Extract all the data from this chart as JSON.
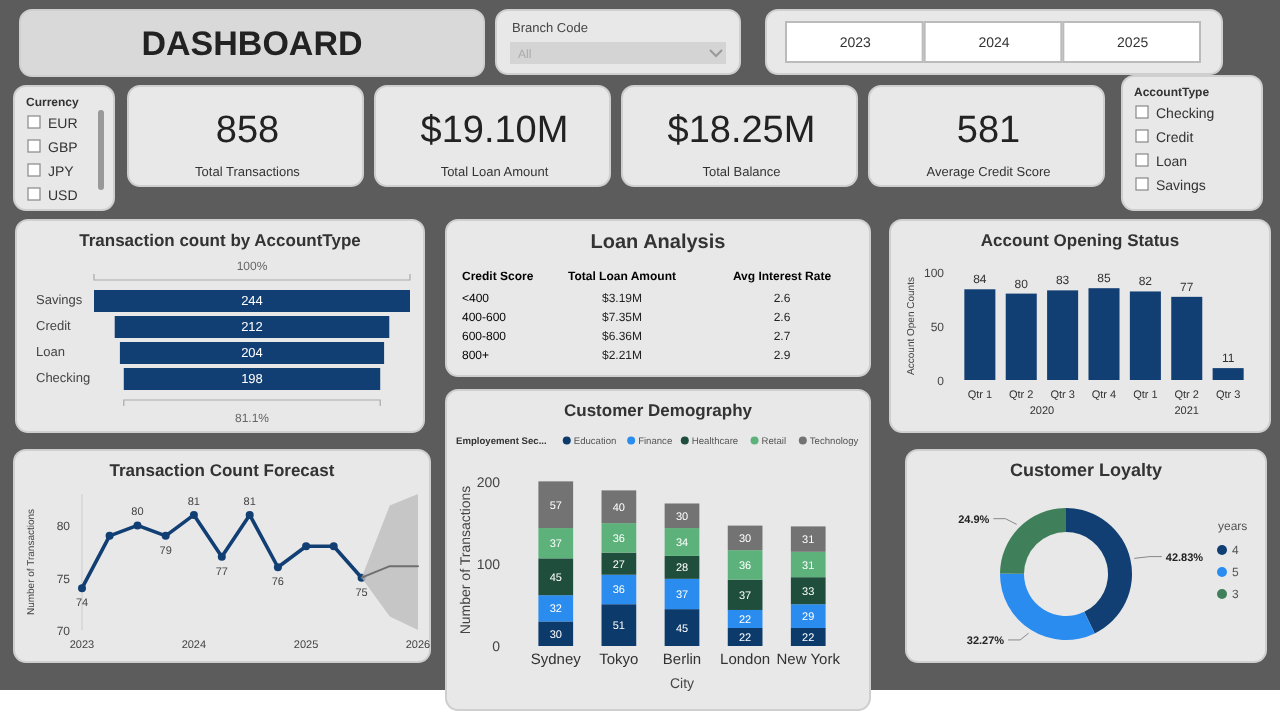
{
  "chart_data": [
    {
      "type": "other",
      "title": "DASHBOARD"
    },
    {
      "type": "other",
      "title": "Branch Code",
      "categories": [
        "All"
      ]
    },
    {
      "type": "other",
      "categories": [
        "2023",
        "2024",
        "2025"
      ]
    },
    {
      "type": "other",
      "title": "Currency",
      "categories": [
        "EUR",
        "GBP",
        "JPY",
        "USD"
      ]
    },
    {
      "type": "other",
      "categories": [
        "Total Transactions",
        "Total Loan Amount",
        "Total Balance",
        "Average Credit Score"
      ],
      "value_labels": [
        "858",
        "$19.10M",
        "$18.25M",
        "581"
      ]
    },
    {
      "type": "other",
      "title": "AccountType",
      "categories": [
        "Checking",
        "Credit",
        "Loan",
        "Savings"
      ]
    },
    {
      "type": "other",
      "title": "Transaction count by AccountType",
      "categories": [
        "Savings",
        "Credit",
        "Loan",
        "Checking"
      ],
      "values": [
        244,
        212,
        204,
        198
      ],
      "color": "#123f73",
      "data_labels": true,
      "annotations": [
        "100%",
        "81.1%"
      ]
    },
    {
      "type": "other",
      "title": "Loan Analysis",
      "xlabel": "Credit Score",
      "categories": [
        "<400",
        "400-600",
        "600-800",
        "800+"
      ],
      "series": [
        {
          "name": "Total Loan Amount",
          "values": [
            3.19,
            7.35,
            6.36,
            2.21
          ],
          "value_labels": [
            "$3.19M",
            "$7.35M",
            "$6.36M",
            "$2.21M"
          ]
        },
        {
          "name": "Avg Interest Rate",
          "values": [
            2.6,
            2.6,
            2.7,
            2.9
          ]
        }
      ],
      "data_labels": true
    },
    {
      "type": "bar",
      "title": "Customer Demography",
      "xlabel": "City",
      "ylabel": "Number of Transactions",
      "legend_title": "Employement Sec...",
      "legend": "top",
      "stacked": true,
      "data_labels": true,
      "categories": [
        "Sydney",
        "Tokyo",
        "Berlin",
        "London",
        "New York"
      ],
      "ylim": [
        0,
        210
      ],
      "yticks": [
        0,
        100,
        200
      ],
      "series": [
        {
          "name": "Education",
          "color": "#0b3a6b",
          "values": [
            30,
            51,
            45,
            22,
            22
          ]
        },
        {
          "name": "Finance",
          "color": "#2b8cf0",
          "values": [
            32,
            36,
            37,
            22,
            29
          ]
        },
        {
          "name": "Healthcare",
          "color": "#1f4e3d",
          "values": [
            45,
            27,
            28,
            37,
            33
          ]
        },
        {
          "name": "Retail",
          "color": "#5cb27a",
          "values": [
            37,
            36,
            34,
            36,
            31
          ]
        },
        {
          "name": "Technology",
          "color": "#737373",
          "values": [
            57,
            40,
            30,
            30,
            31
          ]
        }
      ]
    },
    {
      "type": "bar",
      "title": "Account Opening Status",
      "ylabel": "Account Open Counts",
      "categories": [
        "Qtr 1",
        "Qtr 2",
        "Qtr 3",
        "Qtr 4",
        "Qtr 1",
        "Qtr 2",
        "Qtr 3"
      ],
      "values": [
        84,
        80,
        83,
        85,
        82,
        77,
        11
      ],
      "color": "#123f73",
      "data_labels": true,
      "ylim": [
        0,
        100
      ],
      "yticks": [
        0,
        50,
        100
      ],
      "annotations": [
        "2020",
        "2021"
      ]
    },
    {
      "type": "line",
      "title": "Transaction Count Forecast",
      "ylabel": "Number of Transactions",
      "marker": "circle",
      "xlim": [
        "2023",
        "2026"
      ],
      "xticks": [
        "2023",
        "2024",
        "2025",
        "2026"
      ],
      "ylim": [
        70,
        83
      ],
      "yticks": [
        70,
        75,
        80
      ],
      "series": [
        {
          "color": "#123f73",
          "x": [
            "2023-01",
            "2023-04",
            "2023-07",
            "2023-10",
            "2024-01",
            "2024-04",
            "2024-07",
            "2024-10",
            "2025-01",
            "2025-04",
            "2025-07"
          ],
          "values": [
            74,
            79,
            80,
            79,
            81,
            77,
            81,
            76,
            78,
            78,
            75
          ],
          "value_labels": [
            "74",
            null,
            "80",
            "79",
            "81",
            "77",
            "81",
            "76",
            null,
            null,
            "75"
          ]
        },
        {
          "color": "#6f6f6f",
          "marker": "none",
          "x": [
            "2025-07",
            "2025-10",
            "2026-01"
          ],
          "values": [
            75,
            76.1,
            76.1
          ],
          "lower": [
            75,
            71.3,
            70
          ],
          "upper": [
            75,
            81.9,
            83
          ]
        }
      ]
    },
    {
      "type": "donut",
      "title": "Customer Loyalty",
      "legend_title": "years",
      "legend": "right",
      "categories": [
        "4",
        "5",
        "3"
      ],
      "values": [
        42.83,
        32.27,
        24.9
      ],
      "colors": [
        "#123f73",
        "#2b8cf0",
        "#3f7f5a"
      ],
      "value_labels": [
        "42.83%",
        "32.27%",
        "24.9%"
      ]
    }
  ]
}
